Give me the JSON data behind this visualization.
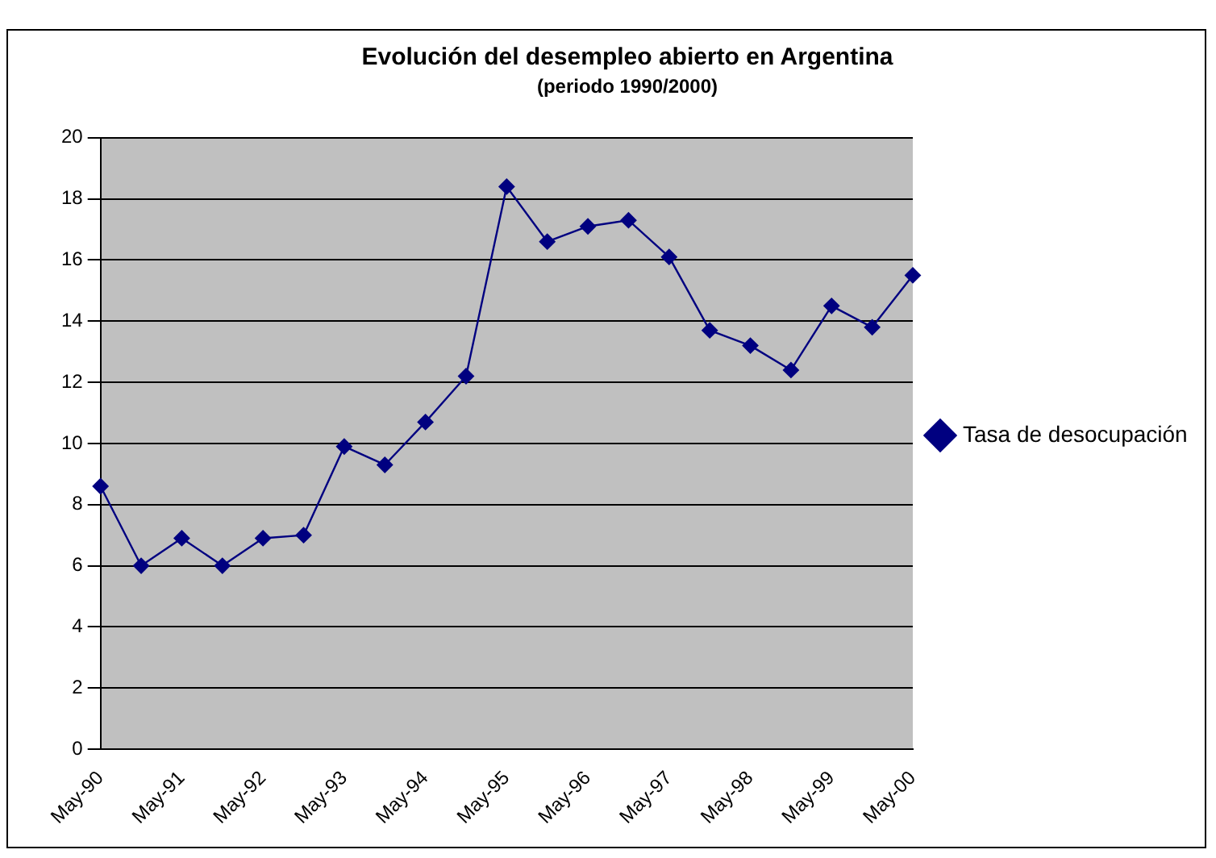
{
  "chart_data": {
    "type": "line",
    "title": "Evolución del desempleo abierto en Argentina",
    "subtitle": "(periodo 1990/2000)",
    "categories": [
      "May-90",
      null,
      "May-91",
      null,
      "May-92",
      null,
      "May-93",
      null,
      "May-94",
      null,
      "May-95",
      null,
      "May-96",
      null,
      "May-97",
      null,
      "May-98",
      null,
      "May-99",
      null,
      "May-00"
    ],
    "series": [
      {
        "name": "Tasa de desocupación",
        "color": "#000080",
        "values": [
          8.6,
          6.0,
          6.9,
          6.0,
          6.9,
          7.0,
          9.9,
          9.3,
          10.7,
          12.2,
          18.4,
          16.6,
          17.1,
          17.3,
          16.1,
          13.7,
          13.2,
          12.4,
          14.5,
          13.8,
          15.5
        ]
      }
    ],
    "ylim": [
      0,
      20
    ],
    "yticks": [
      0,
      2,
      4,
      6,
      8,
      10,
      12,
      14,
      16,
      18,
      20
    ],
    "grid": "y",
    "legend": "right",
    "marker": "diamond",
    "line_style": "solid"
  }
}
